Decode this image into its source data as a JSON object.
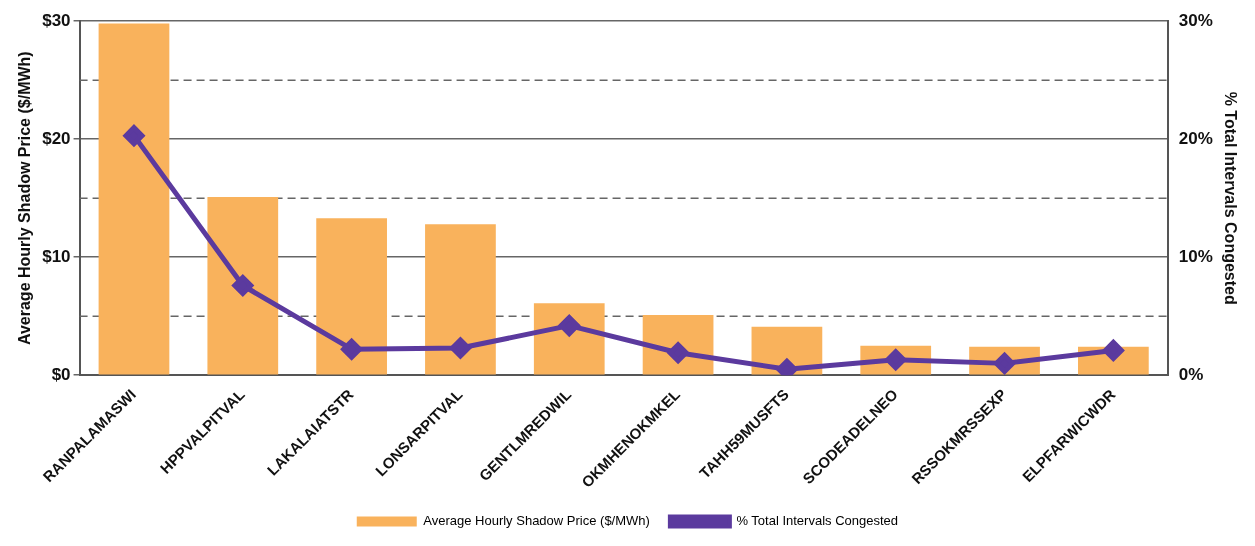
{
  "chart_data": {
    "type": "bar",
    "ylabel": "Average Hourly Shadow Price ($/MWh)",
    "y2label": "% Total Intervals Congested",
    "categories": [
      "RANPALAMASWI",
      "HPPVALPITVAL",
      "LAKALAIATSTR",
      "LONSARPITVAL",
      "GENTLMREDWIL",
      "OKMHENOKMKEL",
      "TAHH59MUSFTS",
      "SCODEADELNEO",
      "RSSOKMRSSEXP",
      "ELPFARWICWDR"
    ],
    "series": [
      {
        "name": "Average Hourly Shadow Price ($/MWh)",
        "color": "#f9b25c",
        "values": [
          29.8,
          15.1,
          13.3,
          12.8,
          6.1,
          5.1,
          4.1,
          2.5,
          2.4,
          2.4
        ]
      },
      {
        "name": "% Total Intervals Congested",
        "type": "line",
        "axis": "y2",
        "color": "#5b3a9e",
        "marker": "diamond",
        "values": [
          20.3,
          7.6,
          2.2,
          2.3,
          4.2,
          1.9,
          0.5,
          1.3,
          1.0,
          2.1
        ]
      }
    ],
    "ylim": [
      0,
      30
    ],
    "yticks": [
      {
        "value": 0,
        "label": "$0"
      },
      {
        "value": 5,
        "label": null
      },
      {
        "value": 10,
        "label": "$10"
      },
      {
        "value": 15,
        "label": null
      },
      {
        "value": 20,
        "label": "$20"
      },
      {
        "value": 25,
        "label": null
      },
      {
        "value": 30,
        "label": "$30"
      }
    ],
    "y2lim": [
      0,
      30
    ],
    "y2ticks": [
      {
        "value": 0,
        "label": "0%"
      },
      {
        "value": 10,
        "label": "10%"
      },
      {
        "value": 20,
        "label": "20%"
      },
      {
        "value": 30,
        "label": "30%"
      }
    ],
    "grid": "y",
    "legend": "bottom"
  }
}
